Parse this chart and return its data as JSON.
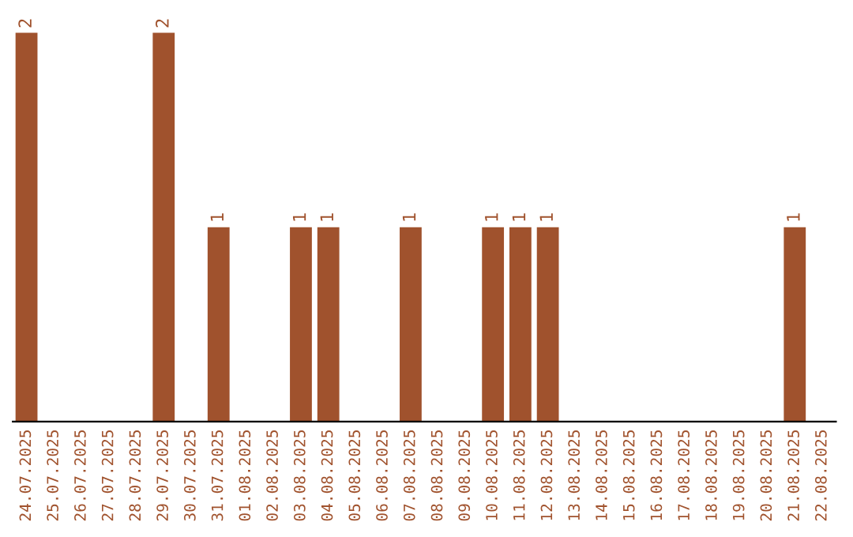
{
  "chart_data": {
    "type": "bar",
    "categories": [
      "24.07.2025",
      "25.07.2025",
      "26.07.2025",
      "27.07.2025",
      "28.07.2025",
      "29.07.2025",
      "30.07.2025",
      "31.07.2025",
      "01.08.2025",
      "02.08.2025",
      "03.08.2025",
      "04.08.2025",
      "05.08.2025",
      "06.08.2025",
      "07.08.2025",
      "08.08.2025",
      "09.08.2025",
      "10.08.2025",
      "11.08.2025",
      "12.08.2025",
      "13.08.2025",
      "14.08.2025",
      "15.08.2025",
      "16.08.2025",
      "17.08.2025",
      "18.08.2025",
      "19.08.2025",
      "20.08.2025",
      "21.08.2025",
      "22.08.2025"
    ],
    "values": [
      2,
      0,
      0,
      0,
      0,
      2,
      0,
      1,
      0,
      0,
      1,
      1,
      0,
      0,
      1,
      0,
      0,
      1,
      1,
      1,
      0,
      0,
      0,
      0,
      0,
      0,
      0,
      0,
      1,
      0
    ],
    "value_labels": [
      "2",
      null,
      null,
      null,
      null,
      "2",
      null,
      "1",
      null,
      null,
      "1",
      "1",
      null,
      null,
      "1",
      null,
      null,
      "1",
      "1",
      "1",
      null,
      null,
      null,
      null,
      null,
      null,
      null,
      null,
      "1",
      null
    ],
    "color": "#a0522d",
    "tick_labels": "x",
    "grid": false,
    "legend": false
  }
}
